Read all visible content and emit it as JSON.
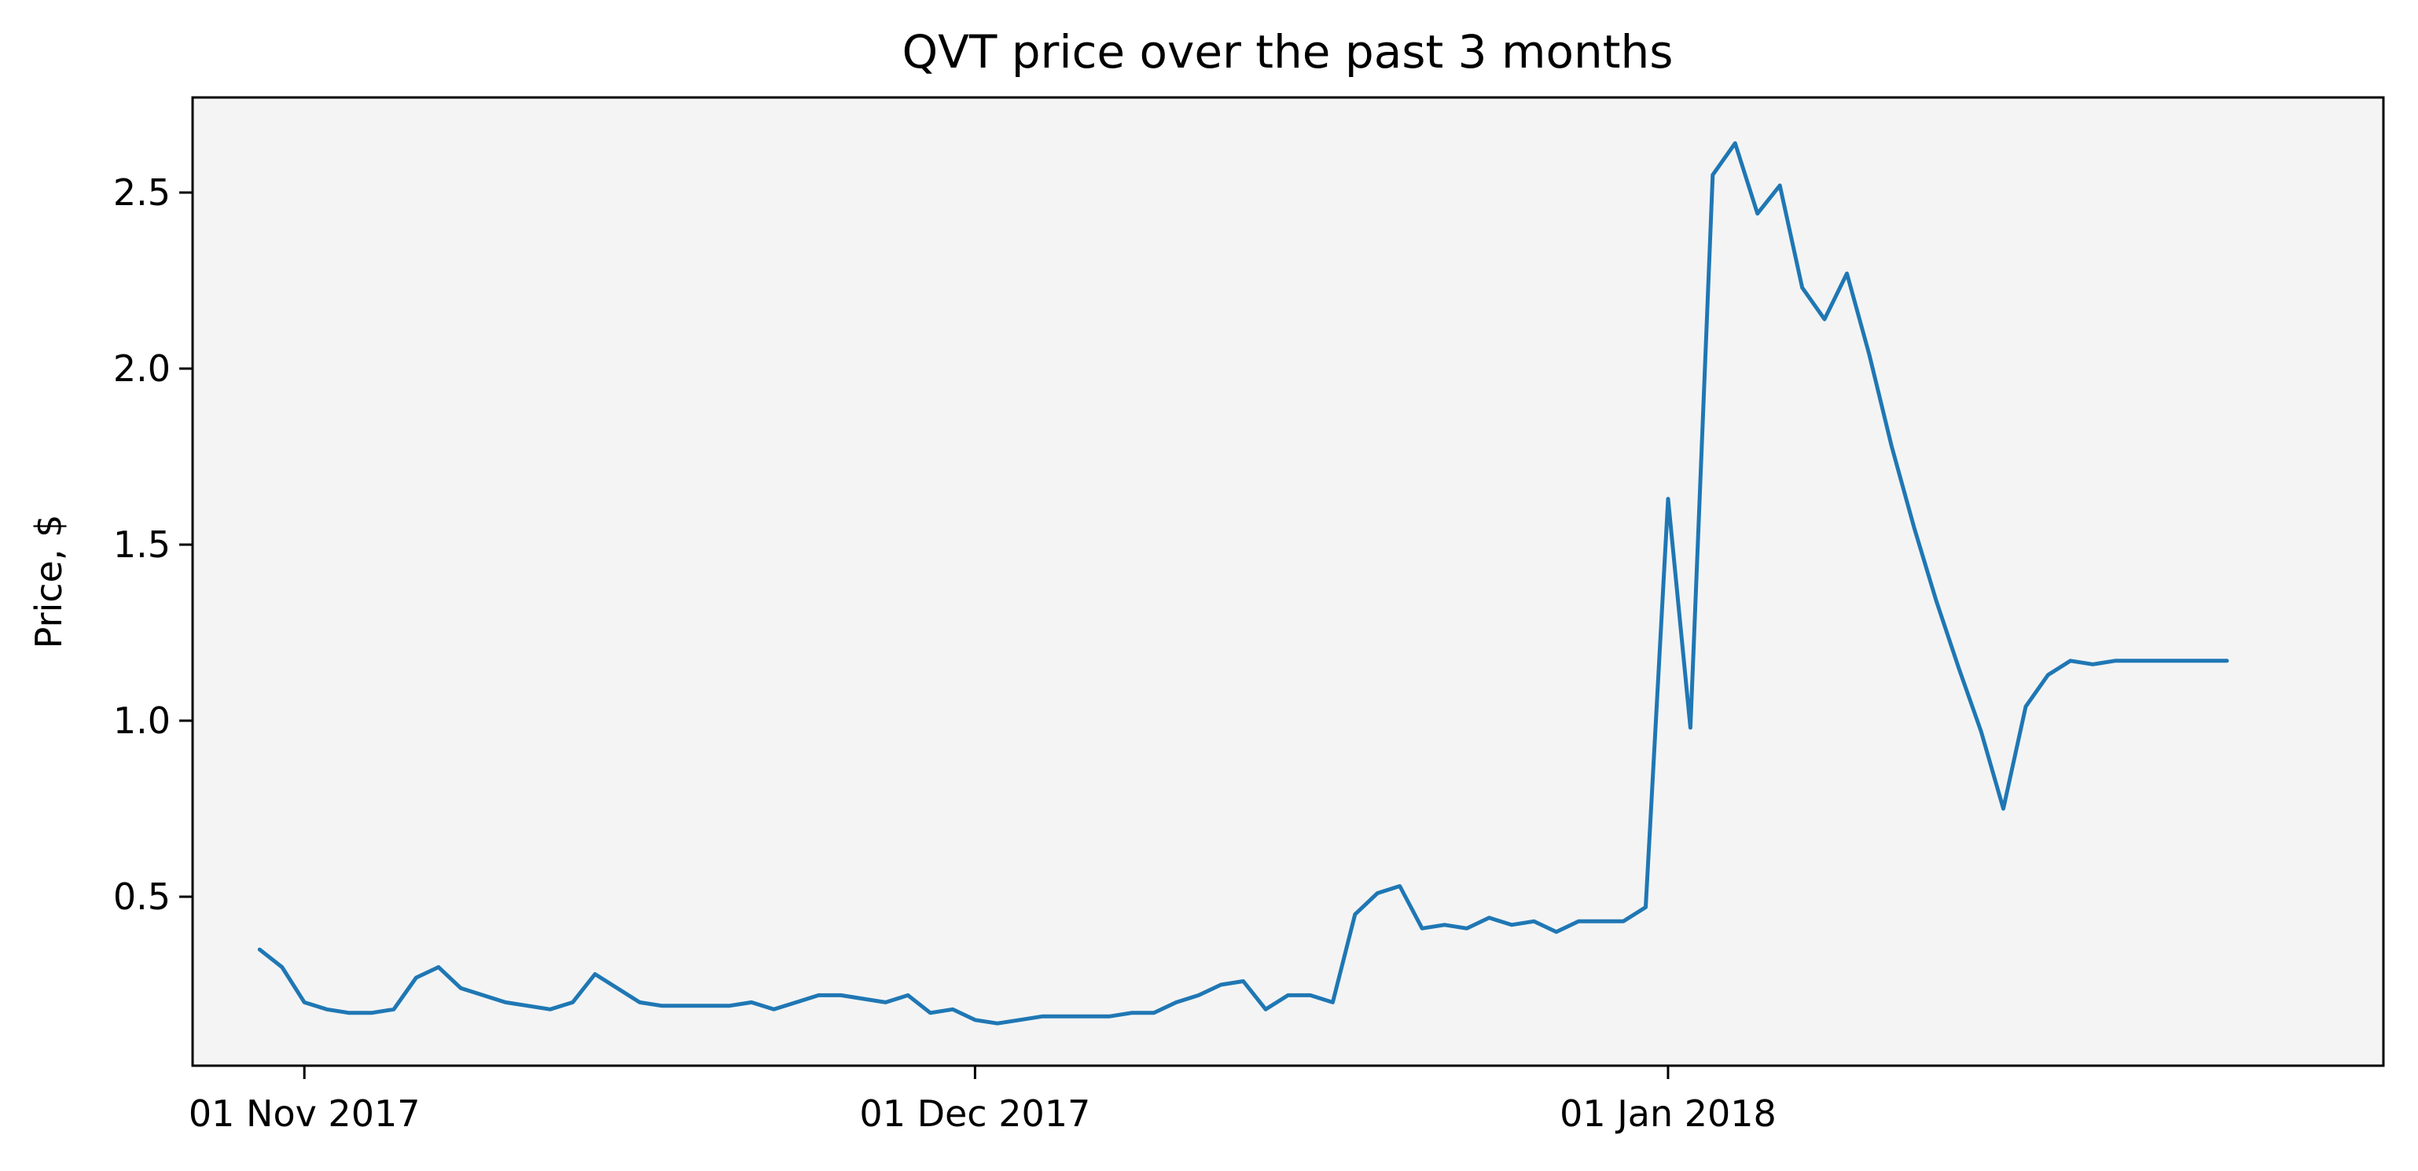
{
  "chart_data": {
    "type": "line",
    "title": "QVT price over the past 3 months",
    "xlabel": "",
    "ylabel": "Price, $",
    "x_ticks": [
      "01 Nov 2017",
      "01 Dec 2017",
      "01 Jan 2018"
    ],
    "y_ticks": [
      "0.5",
      "1.0",
      "1.5",
      "2.0",
      "2.5"
    ],
    "xlim": [
      "2017-10-27",
      "2018-02-02"
    ],
    "ylim": [
      0.02,
      2.77
    ],
    "background_color": "#f4f4f4",
    "line_color": "#1f77b4",
    "grid": false,
    "series": [
      {
        "x": [
          "2017-10-30",
          "2017-10-31",
          "2017-11-01",
          "2017-11-02",
          "2017-11-03",
          "2017-11-04",
          "2017-11-05",
          "2017-11-06",
          "2017-11-07",
          "2017-11-08",
          "2017-11-09",
          "2017-11-10",
          "2017-11-11",
          "2017-11-12",
          "2017-11-13",
          "2017-11-14",
          "2017-11-15",
          "2017-11-16",
          "2017-11-17",
          "2017-11-18",
          "2017-11-19",
          "2017-11-20",
          "2017-11-21",
          "2017-11-22",
          "2017-11-23",
          "2017-11-24",
          "2017-11-25",
          "2017-11-26",
          "2017-11-27",
          "2017-11-28",
          "2017-11-29",
          "2017-11-30",
          "2017-12-01",
          "2017-12-02",
          "2017-12-03",
          "2017-12-04",
          "2017-12-05",
          "2017-12-06",
          "2017-12-07",
          "2017-12-08",
          "2017-12-09",
          "2017-12-10",
          "2017-12-11",
          "2017-12-12",
          "2017-12-13",
          "2017-12-14",
          "2017-12-15",
          "2017-12-16",
          "2017-12-17",
          "2017-12-18",
          "2017-12-19",
          "2017-12-20",
          "2017-12-21",
          "2017-12-22",
          "2017-12-23",
          "2017-12-24",
          "2017-12-25",
          "2017-12-26",
          "2017-12-27",
          "2017-12-28",
          "2017-12-29",
          "2017-12-30",
          "2017-12-31",
          "2018-01-01",
          "2018-01-02",
          "2018-01-03",
          "2018-01-04",
          "2018-01-05",
          "2018-01-06",
          "2018-01-07",
          "2018-01-08",
          "2018-01-09",
          "2018-01-10",
          "2018-01-11",
          "2018-01-12",
          "2018-01-13",
          "2018-01-14",
          "2018-01-15",
          "2018-01-16",
          "2018-01-17",
          "2018-01-18",
          "2018-01-19",
          "2018-01-20",
          "2018-01-21",
          "2018-01-22",
          "2018-01-23",
          "2018-01-24",
          "2018-01-25",
          "2018-01-26"
        ],
        "y": [
          0.35,
          0.3,
          0.2,
          0.18,
          0.17,
          0.17,
          0.18,
          0.27,
          0.3,
          0.24,
          0.22,
          0.2,
          0.19,
          0.18,
          0.2,
          0.28,
          0.24,
          0.2,
          0.19,
          0.19,
          0.19,
          0.19,
          0.2,
          0.18,
          0.2,
          0.22,
          0.22,
          0.21,
          0.2,
          0.22,
          0.17,
          0.18,
          0.15,
          0.14,
          0.15,
          0.16,
          0.16,
          0.16,
          0.16,
          0.17,
          0.17,
          0.2,
          0.22,
          0.25,
          0.26,
          0.18,
          0.22,
          0.22,
          0.2,
          0.45,
          0.51,
          0.53,
          0.41,
          0.42,
          0.41,
          0.44,
          0.42,
          0.43,
          0.4,
          0.43,
          0.43,
          0.43,
          0.47,
          1.63,
          0.98,
          2.55,
          2.64,
          2.44,
          2.52,
          2.23,
          2.14,
          2.27,
          2.04,
          1.78,
          1.55,
          1.34,
          1.15,
          0.97,
          0.75,
          1.04,
          1.13,
          1.17,
          1.16,
          1.17,
          1.17,
          1.17,
          1.17,
          1.17,
          1.17
        ]
      }
    ]
  }
}
